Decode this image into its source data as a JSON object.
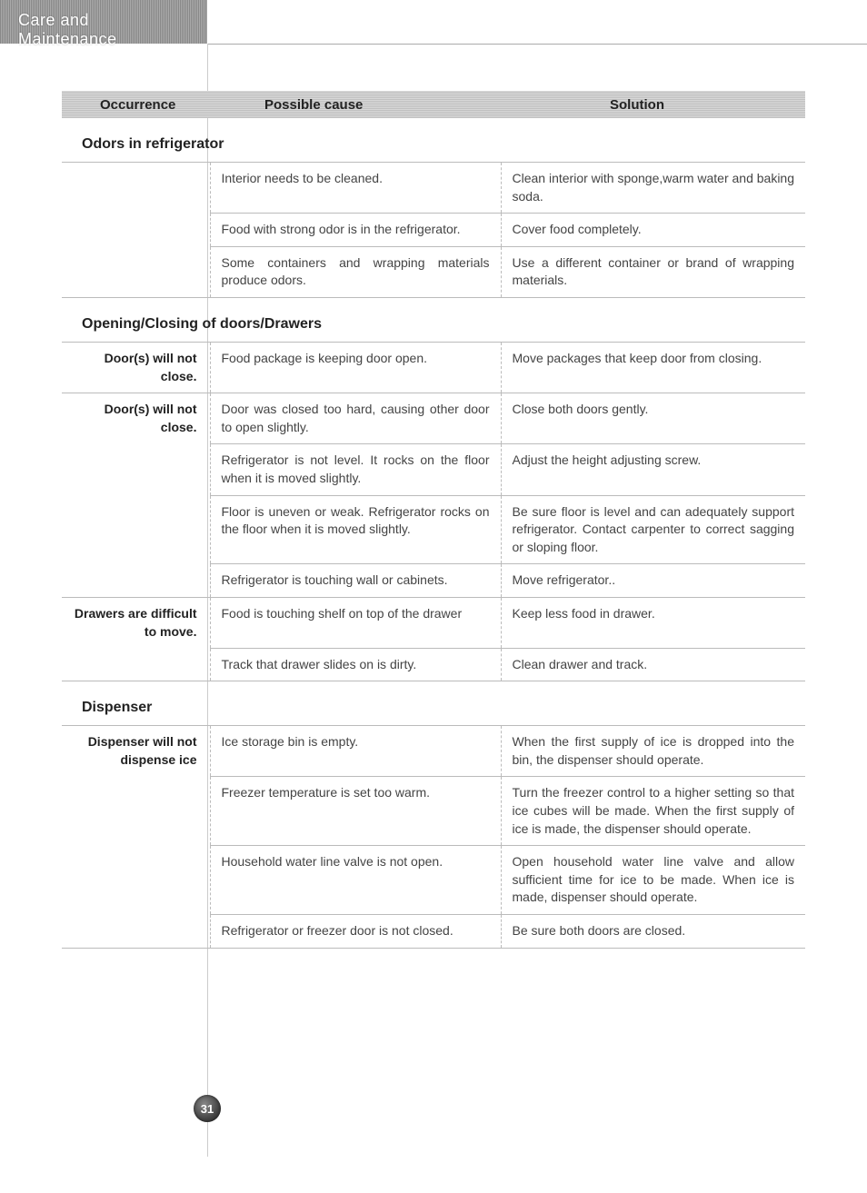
{
  "tab_title": "Care and Maintenance",
  "page_number": "31",
  "columns": {
    "occurrence": "Occurrence",
    "cause": "Possible cause",
    "solution": "Solution"
  },
  "colors": {
    "band_bg": "#c8c8c8",
    "text": "#333333",
    "border": "#bbbbbb"
  },
  "sections": [
    {
      "title": "Odors in refrigerator",
      "groups": [
        {
          "occurrence": "",
          "rows": [
            {
              "cause": "Interior needs to be cleaned.",
              "solution": "Clean interior with sponge,warm water and baking soda."
            },
            {
              "cause": "Food with strong odor is in the refrigerator.",
              "solution": "Cover food completely."
            },
            {
              "cause": "Some containers and wrapping materials produce odors.",
              "solution": "Use a different container or brand of wrapping materials."
            }
          ]
        }
      ]
    },
    {
      "title": "Opening/Closing of doors/Drawers",
      "groups": [
        {
          "occurrence": "Door(s) will not close.",
          "rows": [
            {
              "cause": "Food package is keeping door open.",
              "solution": "Move packages that keep door from closing."
            }
          ]
        },
        {
          "occurrence": "Door(s) will not close.",
          "rows": [
            {
              "cause": "Door was closed too hard, causing other door to open slightly.",
              "solution": "Close both doors gently."
            },
            {
              "cause": "Refrigerator is not level. It rocks on the floor when it is moved slightly.",
              "solution": "Adjust the height adjusting screw."
            },
            {
              "cause": "Floor is uneven or weak.\nRefrigerator rocks on the floor when it is moved slightly.",
              "solution": "Be sure floor is level and can adequately support refrigerator.\nContact carpenter to correct sagging or sloping floor."
            },
            {
              "cause": "Refrigerator is touching wall or cabinets.",
              "solution": "Move refrigerator.."
            }
          ]
        },
        {
          "occurrence": "Drawers are difficult to move.",
          "rows": [
            {
              "cause": "Food is touching shelf on top of the drawer",
              "solution": "Keep less food in drawer."
            },
            {
              "cause": "Track that drawer slides on is dirty.",
              "solution": "Clean drawer and track."
            }
          ]
        }
      ]
    },
    {
      "title": "Dispenser",
      "groups": [
        {
          "occurrence": "Dispenser will not dispense ice",
          "rows": [
            {
              "cause": "Ice storage bin is empty.",
              "solution": "When the first supply of ice is dropped into the bin, the dispenser should operate."
            },
            {
              "cause": "Freezer temperature is set too warm.",
              "solution": "Turn the freezer control to a higher setting so that ice cubes will be made. When the first supply of ice is made, the dispenser should operate."
            },
            {
              "cause": "Household water line valve is not open.",
              "solution": "Open household water line valve and allow sufficient time for ice to be made. When ice is made, dispenser should operate."
            },
            {
              "cause": "Refrigerator or freezer door is not closed.",
              "solution": "Be sure both doors are closed."
            }
          ]
        }
      ]
    }
  ]
}
